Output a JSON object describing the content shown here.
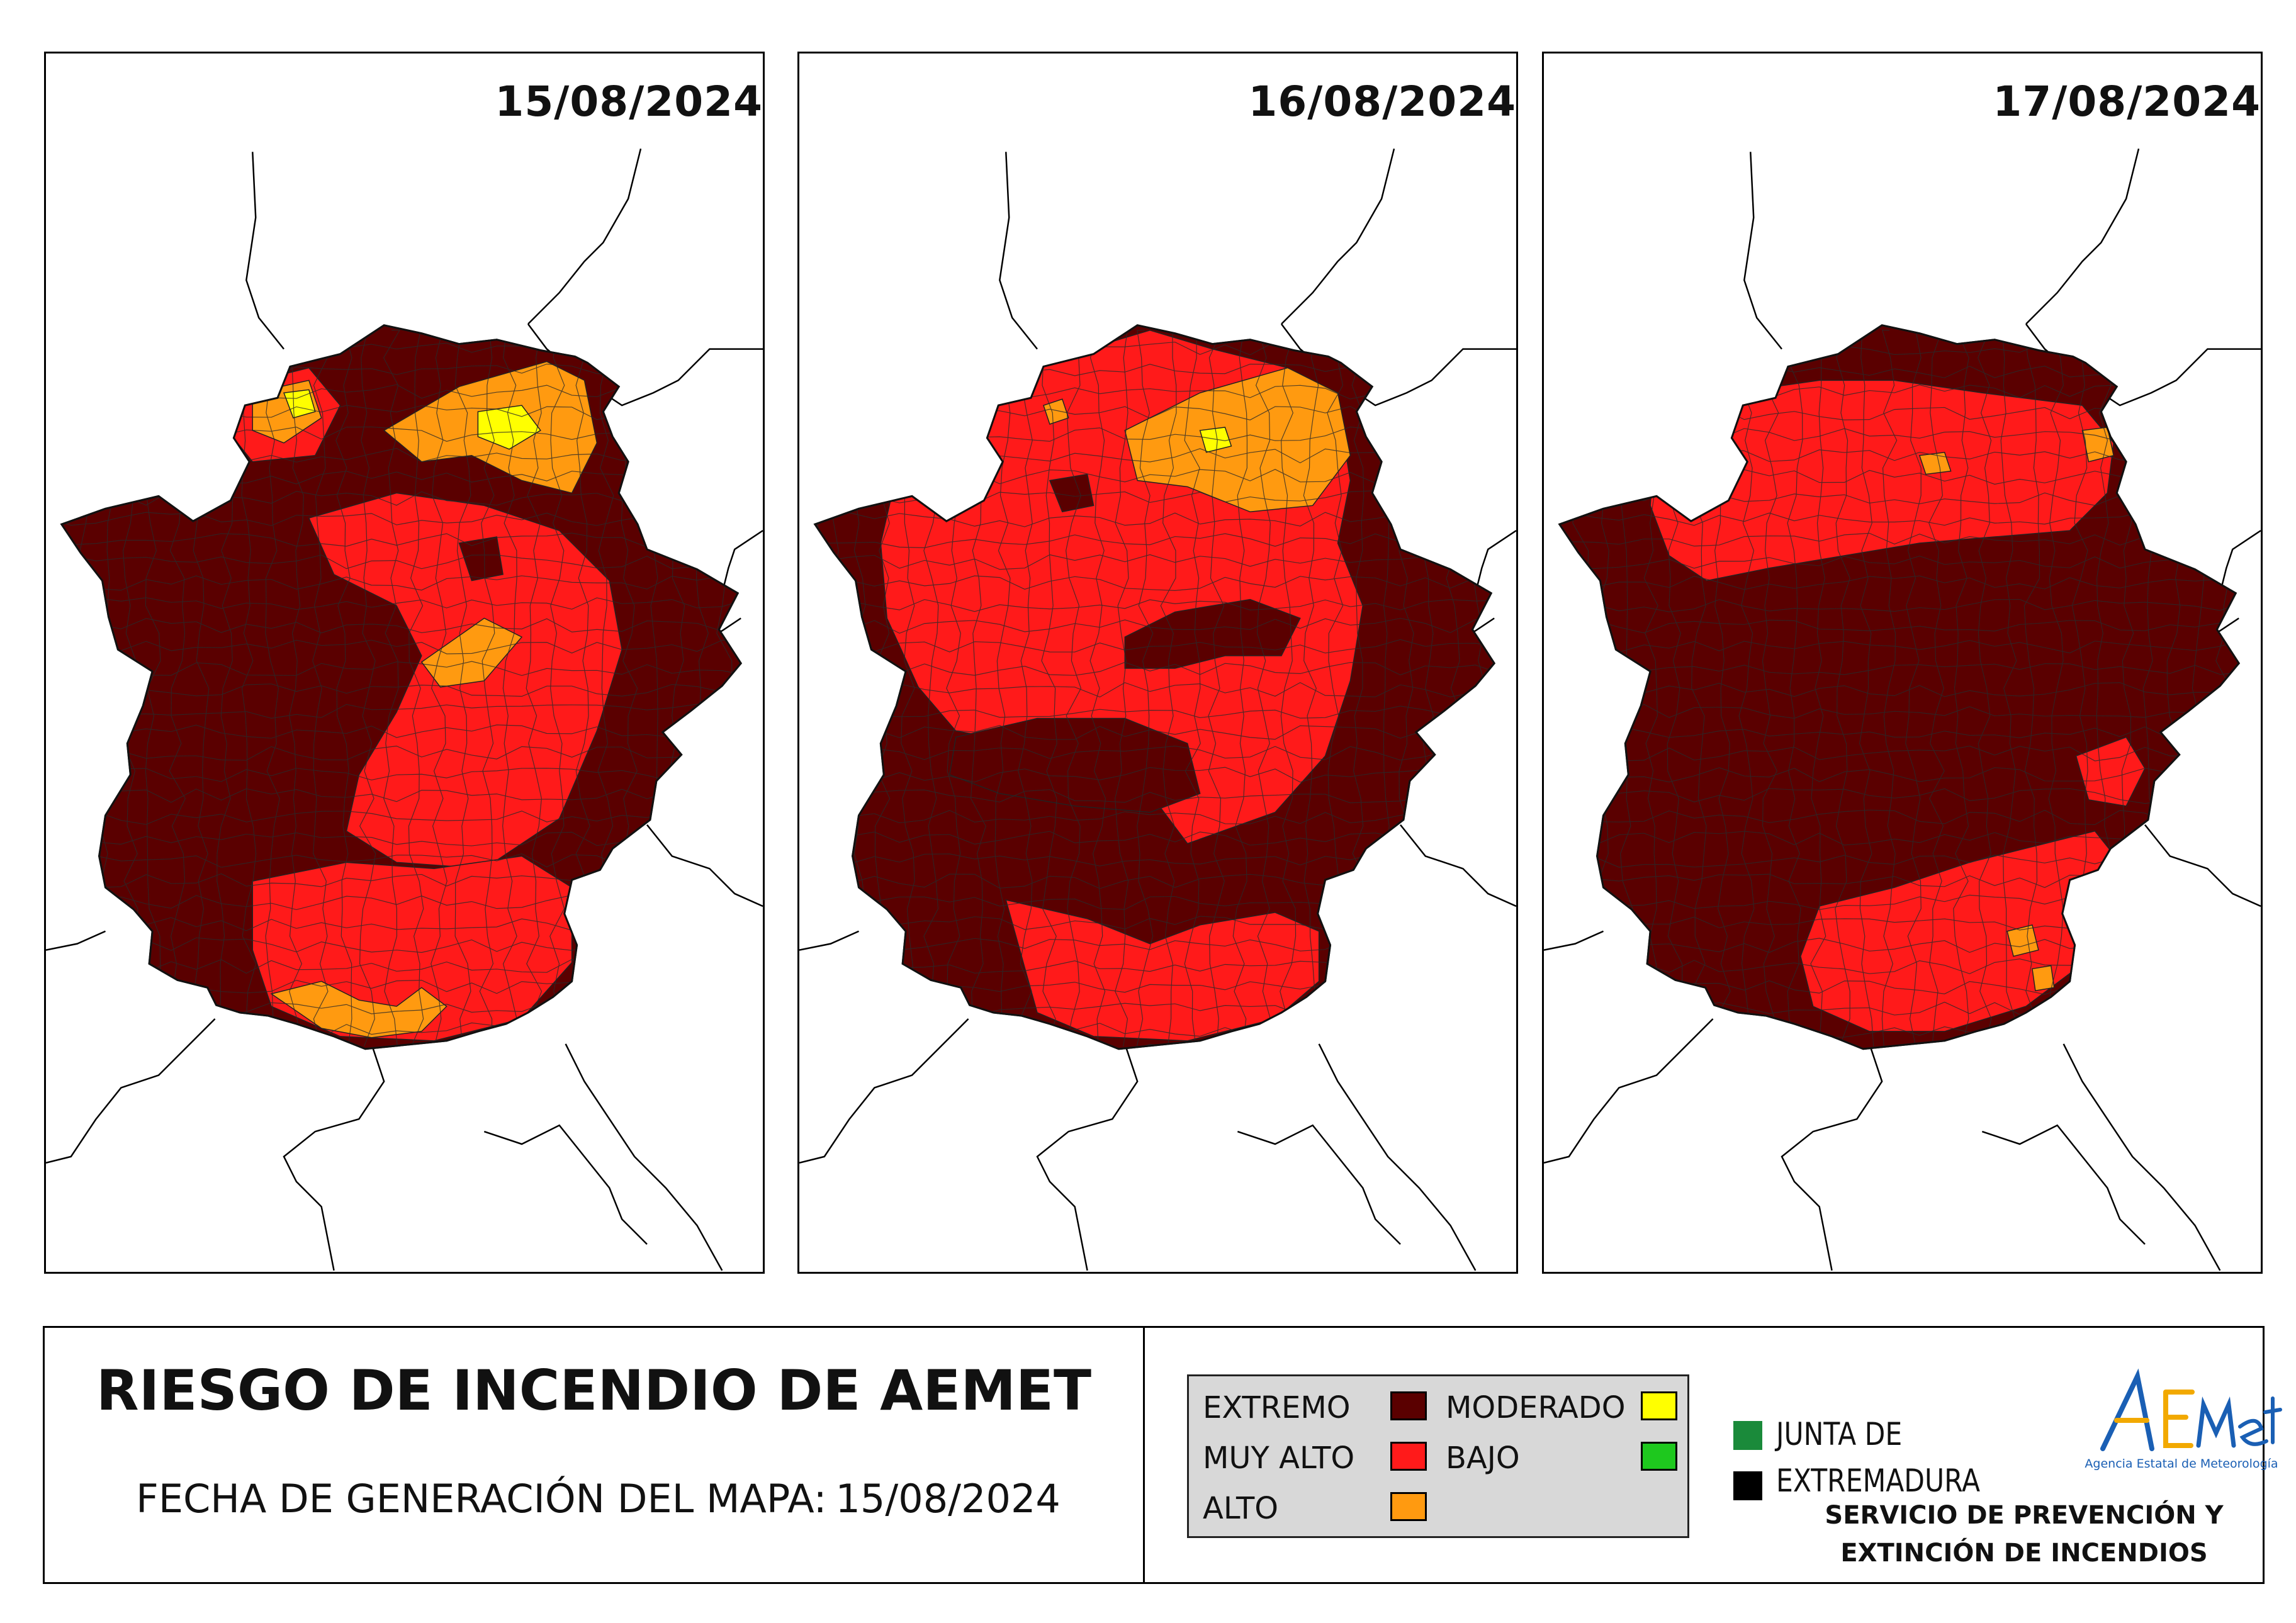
{
  "panels": [
    {
      "date": "15/08/2024",
      "variant": 0
    },
    {
      "date": "16/08/2024",
      "variant": 1
    },
    {
      "date": "17/08/2024",
      "variant": 2
    }
  ],
  "footer": {
    "title": "RIESGO DE INCENDIO DE AEMET",
    "generation_label": "FECHA DE GENERACIÓN DEL MAPA:",
    "generation_date": "15/08/2024"
  },
  "legend": {
    "items": [
      {
        "label": "EXTREMO",
        "color": "#5a0000"
      },
      {
        "label": "MUY ALTO",
        "color": "#ff1a1a"
      },
      {
        "label": "ALTO",
        "color": "#ff9a10"
      },
      {
        "label": "MODERADO",
        "color": "#ffff00"
      },
      {
        "label": "BAJO",
        "color": "#1ec81e"
      }
    ]
  },
  "logos": {
    "junta_line1": "JUNTA DE",
    "junta_line2": "EXTREMADURA",
    "junta_green": "#1a8a3a",
    "aemet_word": "AEMet",
    "aemet_caption": "Agencia Estatal de Meteorología"
  },
  "service": {
    "line1": "SERVICIO DE PREVENCIÓN Y",
    "line2": "EXTINCIÓN DE INCENDIOS"
  }
}
